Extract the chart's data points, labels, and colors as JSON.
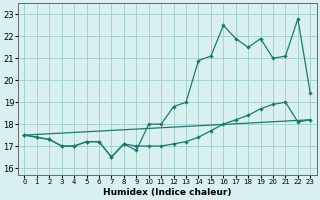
{
  "xlabel": "Humidex (Indice chaleur)",
  "bg_color": "#d8f0f0",
  "grid_color": "#a0cccc",
  "line_color": "#1a7a6e",
  "xlim": [
    -0.5,
    23.5
  ],
  "ylim": [
    15.7,
    23.5
  ],
  "yticks": [
    16,
    17,
    18,
    19,
    20,
    21,
    22,
    23
  ],
  "xticks": [
    0,
    1,
    2,
    3,
    4,
    5,
    6,
    7,
    8,
    9,
    10,
    11,
    12,
    13,
    14,
    15,
    16,
    17,
    18,
    19,
    20,
    21,
    22,
    23
  ],
  "series1_x": [
    0,
    1,
    2,
    3,
    4,
    5,
    6,
    7,
    8,
    9,
    10,
    11,
    12,
    13,
    14,
    15,
    16,
    17,
    18,
    19,
    20,
    21,
    22,
    23
  ],
  "series1_y": [
    17.5,
    17.4,
    17.3,
    17.0,
    17.0,
    17.2,
    17.2,
    16.5,
    17.1,
    17.0,
    17.0,
    17.0,
    17.1,
    17.2,
    17.4,
    17.7,
    18.0,
    18.2,
    18.4,
    18.7,
    18.9,
    19.0,
    18.1,
    18.2
  ],
  "series2_x": [
    0,
    1,
    2,
    3,
    4,
    5,
    6,
    7,
    8,
    9,
    10,
    11,
    12,
    13,
    14,
    15,
    16,
    17,
    18,
    19,
    20,
    21,
    22,
    23
  ],
  "series2_y": [
    17.5,
    17.4,
    17.3,
    17.0,
    17.0,
    17.2,
    17.2,
    16.5,
    17.1,
    16.8,
    18.0,
    18.0,
    18.8,
    19.0,
    20.9,
    21.1,
    22.5,
    21.9,
    21.5,
    21.9,
    21.0,
    21.1,
    22.8,
    19.4
  ],
  "series3_x": [
    0,
    23
  ],
  "series3_y": [
    17.5,
    18.2
  ]
}
